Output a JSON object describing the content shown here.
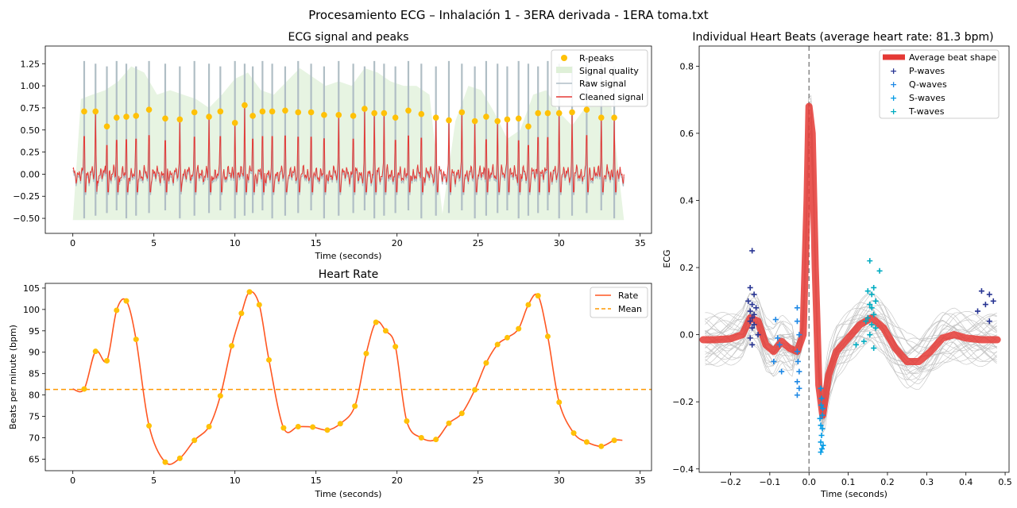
{
  "figure": {
    "suptitle": "Procesamiento ECG – Inhalación 1 - 3ERA derivada - 1ERA toma.txt"
  },
  "colors": {
    "peak": "#FFC107",
    "quality": "#DFF0D8",
    "raw": "#B0BEC5",
    "cleaned": "#E53935",
    "rate": "#FF5722",
    "mean": "#FF9800",
    "avg_beat": "#E53935",
    "p_wave": "#283593",
    "q_wave": "#1E88E5",
    "s_wave": "#039BE5",
    "t_wave": "#00ACC1",
    "beat_line": "#BDBDBD"
  },
  "chart_data": [
    {
      "type": "line",
      "title": "ECG signal and peaks",
      "xlabel": "Time (seconds)",
      "ylabel": "",
      "xlim": [
        -1.7,
        35.7
      ],
      "ylim": [
        -0.67,
        1.45
      ],
      "xticks": [
        "0",
        "5",
        "10",
        "15",
        "20",
        "25",
        "30",
        "35"
      ],
      "yticks": [
        "1.25",
        "1.00",
        "0.75",
        "0.50",
        "0.25",
        "0.00",
        "−0.25",
        "−0.50"
      ],
      "legend": {
        "position": "top-right",
        "entries": [
          "R-peaks",
          "Signal quality",
          "Raw signal",
          "Cleaned signal"
        ]
      },
      "r_peaks": {
        "times": [
          0.7,
          1.4,
          2.1,
          2.7,
          3.3,
          3.9,
          4.7,
          5.7,
          6.6,
          7.5,
          8.4,
          9.1,
          10.0,
          10.6,
          11.1,
          11.7,
          12.3,
          13.1,
          13.9,
          14.7,
          15.5,
          16.4,
          17.3,
          18.0,
          18.6,
          19.2,
          19.9,
          20.7,
          21.5,
          22.4,
          23.2,
          24.0,
          24.8,
          25.5,
          26.2,
          26.8,
          27.5,
          28.1,
          28.7,
          29.3,
          30.0,
          30.8,
          31.7,
          32.6,
          33.4
        ],
        "amplitudes": [
          0.71,
          0.71,
          0.54,
          0.64,
          0.65,
          0.66,
          0.73,
          0.63,
          0.62,
          0.7,
          0.65,
          0.71,
          0.58,
          0.78,
          0.66,
          0.71,
          0.71,
          0.72,
          0.7,
          0.7,
          0.67,
          0.67,
          0.66,
          0.74,
          0.69,
          0.69,
          0.64,
          0.72,
          0.68,
          0.64,
          0.61,
          0.7,
          0.6,
          0.65,
          0.6,
          0.62,
          0.63,
          0.54,
          0.69,
          0.69,
          0.69,
          0.7,
          0.73,
          0.64,
          0.64
        ]
      },
      "signal_quality": {
        "t": [
          0,
          0.5,
          1.2,
          2.0,
          2.8,
          3.6,
          4.4,
          5.2,
          6.0,
          6.8,
          7.6,
          8.4,
          9.2,
          10.0,
          10.8,
          11.6,
          12.4,
          13.2,
          14.0,
          14.8,
          15.6,
          16.4,
          17.2,
          18.0,
          18.8,
          19.6,
          20.4,
          21.2,
          22.0,
          22.8,
          23.6,
          24.4,
          25.2,
          26.0,
          26.8,
          27.6,
          28.4,
          29.2,
          30.0,
          30.8,
          31.6,
          32.4,
          33.2,
          34.0
        ],
        "v": [
          -0.52,
          0.85,
          0.9,
          0.95,
          1.05,
          1.22,
          1.15,
          0.9,
          0.95,
          0.9,
          0.85,
          0.75,
          0.9,
          1.08,
          1.15,
          0.95,
          0.9,
          1.05,
          1.2,
          1.1,
          1.0,
          1.05,
          1.0,
          1.2,
          1.15,
          1.05,
          1.0,
          1.0,
          0.9,
          -0.45,
          0.6,
          1.0,
          0.95,
          0.7,
          0.4,
          0.5,
          0.9,
          0.95,
          0.7,
          0.55,
          0.75,
          0.9,
          0.8,
          -0.52
        ]
      },
      "raw_signal": {
        "peak_amplitude": 1.28,
        "trough_amplitude": -0.5
      },
      "cleaned_signal": {
        "baseline_range": [
          -0.2,
          0.1
        ],
        "duration": 34.0
      }
    },
    {
      "type": "line",
      "title": "Heart Rate",
      "xlabel": "Time (seconds)",
      "ylabel": "Beats per minute (bpm)",
      "xlim": [
        -1.7,
        35.7
      ],
      "ylim": [
        62.3,
        106.1
      ],
      "xticks": [
        "0",
        "5",
        "10",
        "15",
        "20",
        "25",
        "30",
        "35"
      ],
      "yticks": [
        "105",
        "100",
        "95",
        "90",
        "85",
        "80",
        "75",
        "70",
        "65"
      ],
      "legend": {
        "position": "top-right",
        "entries": [
          "Rate",
          "Mean"
        ]
      },
      "mean": 81.3,
      "line_start": 0,
      "line_end": 33.9,
      "x": [
        0.7,
        1.4,
        2.1,
        2.7,
        3.3,
        3.9,
        4.7,
        5.7,
        6.6,
        7.5,
        8.4,
        9.1,
        9.8,
        10.4,
        10.9,
        11.5,
        12.1,
        13.0,
        13.9,
        14.8,
        15.7,
        16.5,
        17.4,
        18.1,
        18.7,
        19.3,
        19.9,
        20.6,
        21.5,
        22.4,
        23.2,
        24.0,
        24.8,
        25.5,
        26.2,
        26.8,
        27.5,
        28.1,
        28.7,
        29.3,
        30.0,
        30.9,
        31.7,
        32.6,
        33.4
      ],
      "y": [
        81.4,
        90.2,
        88.0,
        99.8,
        102.0,
        93.0,
        72.8,
        64.3,
        65.2,
        69.4,
        72.6,
        79.8,
        91.5,
        99.1,
        104.1,
        101.1,
        88.2,
        72.3,
        72.6,
        72.5,
        71.8,
        73.3,
        77.4,
        89.7,
        97.0,
        95.0,
        91.3,
        73.9,
        70.0,
        69.6,
        73.4,
        75.7,
        81.2,
        87.5,
        91.8,
        93.4,
        95.5,
        101.1,
        103.2,
        93.7,
        78.3,
        71.1,
        69.0,
        68.0,
        69.4
      ]
    },
    {
      "type": "line",
      "title": "Individual Heart Beats (average heart rate: 81.3 bpm)",
      "xlabel": "Time (seconds)",
      "ylabel": "ECG",
      "xlim": [
        -0.28,
        0.51
      ],
      "ylim": [
        -0.41,
        0.86
      ],
      "xticks": [
        "−0.2",
        "−0.1",
        "0.0",
        "0.1",
        "0.2",
        "0.3",
        "0.4",
        "0.5"
      ],
      "yticks": [
        "0.8",
        "0.6",
        "0.4",
        "0.2",
        "0.0",
        "−0.2",
        "−0.4"
      ],
      "legend": {
        "position": "top-right",
        "entries": [
          "Average beat shape",
          "P-waves",
          "Q-waves",
          "S-waves",
          "T-waves"
        ]
      },
      "average_beat": {
        "x": [
          -0.27,
          -0.24,
          -0.2,
          -0.17,
          -0.15,
          -0.13,
          -0.11,
          -0.09,
          -0.07,
          -0.05,
          -0.03,
          -0.015,
          -0.005,
          0.0,
          0.008,
          0.016,
          0.025,
          0.035,
          0.05,
          0.07,
          0.1,
          0.13,
          0.16,
          0.19,
          0.22,
          0.25,
          0.28,
          0.31,
          0.34,
          0.37,
          0.4,
          0.44,
          0.48
        ],
        "y": [
          -0.015,
          -0.015,
          -0.012,
          0.0,
          0.05,
          0.04,
          -0.03,
          -0.05,
          -0.02,
          -0.04,
          -0.05,
          0.0,
          0.4,
          0.68,
          0.6,
          0.2,
          -0.15,
          -0.24,
          -0.12,
          -0.05,
          -0.01,
          0.03,
          0.05,
          0.02,
          -0.04,
          -0.08,
          -0.08,
          -0.05,
          -0.01,
          0.0,
          -0.01,
          -0.015,
          -0.015
        ]
      },
      "p_waves": {
        "x": [
          -0.145,
          -0.15,
          -0.14,
          -0.155,
          -0.145,
          -0.135,
          -0.15,
          -0.14,
          -0.145,
          -0.15,
          -0.14,
          -0.145,
          -0.13,
          -0.15,
          -0.145,
          0.43,
          0.44,
          0.45,
          0.46,
          0.47,
          0.46
        ],
        "y": [
          0.25,
          0.14,
          0.12,
          0.1,
          0.09,
          0.08,
          0.07,
          0.06,
          0.05,
          0.04,
          0.03,
          0.02,
          0.0,
          -0.01,
          -0.03,
          0.07,
          0.13,
          0.09,
          0.12,
          0.1,
          0.04
        ]
      },
      "q_waves": {
        "x": [
          -0.085,
          -0.08,
          -0.075,
          -0.09,
          -0.07,
          -0.03,
          -0.03,
          -0.025,
          -0.03,
          -0.028,
          -0.025,
          -0.03,
          -0.025,
          -0.03
        ],
        "y": [
          0.045,
          -0.01,
          -0.03,
          -0.08,
          -0.11,
          0.08,
          0.04,
          0.0,
          -0.05,
          -0.08,
          -0.11,
          -0.14,
          -0.16,
          -0.18
        ]
      },
      "s_waves": {
        "x": [
          0.03,
          0.032,
          0.035,
          0.028,
          0.03,
          0.034,
          0.032,
          0.03,
          0.036,
          0.033,
          0.03,
          0.034,
          0.031
        ],
        "y": [
          -0.16,
          -0.19,
          -0.22,
          -0.25,
          -0.27,
          -0.28,
          -0.3,
          -0.32,
          -0.33,
          -0.34,
          -0.35,
          -0.24,
          -0.21
        ]
      },
      "t_waves": {
        "x": [
          0.155,
          0.165,
          0.15,
          0.16,
          0.17,
          0.155,
          0.16,
          0.165,
          0.15,
          0.145,
          0.16,
          0.17,
          0.155,
          0.14,
          0.12,
          0.18,
          0.165
        ],
        "y": [
          0.22,
          0.14,
          0.13,
          0.12,
          0.1,
          0.09,
          0.08,
          0.06,
          0.05,
          0.04,
          0.03,
          0.02,
          0.0,
          -0.02,
          -0.03,
          0.19,
          -0.04
        ]
      },
      "vertical_marker_x": 0.0
    }
  ]
}
